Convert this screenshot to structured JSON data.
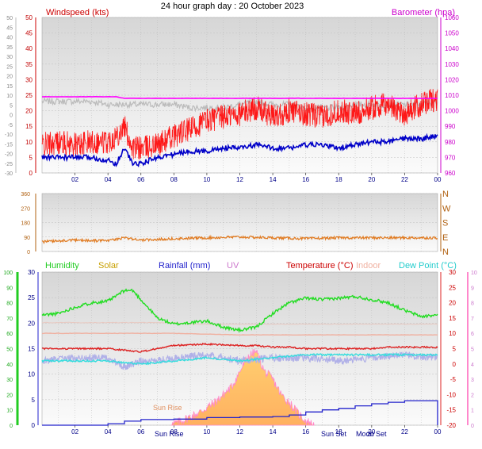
{
  "title": "24 hour graph day : 20 October 2023",
  "colors": {
    "wind": "#ff0000",
    "gust": "#ff0000",
    "avg_wind": "#0000c8",
    "wind_axis": "#c00000",
    "baro": "#ff00ff",
    "baro_axis": "#cc00cc",
    "dir": "#e07a20",
    "dir_axis": "#b06010",
    "humidity": "#22dd22",
    "solar": "#c8a000",
    "rain": "#2222cc",
    "uv": "#cc77cc",
    "temp": "#dd2222",
    "indoor": "#f0b0a0",
    "dewpoint": "#33dddd",
    "feels": "#b0b0e8",
    "grey_series": "#bbbbbb",
    "panel_top": "#d8d8d8",
    "panel_bottom": "#fafafa",
    "grid": "#b8b8b8",
    "axis_text": "#555555",
    "sun_fill": "#ffc060",
    "sun_edge": "#ff88cc"
  },
  "chart_data": [
    {
      "type": "line",
      "panel": "wind_baro",
      "title": "",
      "left_label": "Windspeed (kts)",
      "right_label": "Barometer (hpa)",
      "left_ticks": [
        "50",
        "45",
        "40",
        "35",
        "30",
        "25",
        "20",
        "15",
        "10",
        "5",
        "0",
        "-5",
        "-10",
        "-15",
        "-20",
        "-25",
        "-30"
      ],
      "left_ticks_wind": [
        "50",
        "45",
        "40",
        "35",
        "30",
        "25",
        "20",
        "15",
        "10",
        "5",
        "0"
      ],
      "right_ticks": [
        "1060",
        "1050",
        "1040",
        "1030",
        "1020",
        "1010",
        "1000",
        "990",
        "980",
        "970",
        "960"
      ],
      "x_ticks": [
        "02",
        "04",
        "06",
        "08",
        "10",
        "12",
        "14",
        "16",
        "18",
        "20",
        "22",
        "00"
      ],
      "ylim_wind": [
        0,
        50
      ],
      "ylim_baro": [
        960,
        1060
      ],
      "hours": [
        0,
        1,
        2,
        3,
        4,
        4.5,
        5,
        5.5,
        6,
        7,
        8,
        9,
        10,
        11,
        12,
        13,
        14,
        15,
        16,
        17,
        18,
        19,
        20,
        21,
        22,
        23,
        24
      ],
      "series": [
        {
          "key": "gust",
          "values": [
            9,
            10,
            9,
            10,
            10,
            12,
            15,
            8,
            8,
            9,
            12,
            14,
            17,
            18,
            19,
            21,
            18,
            20,
            19,
            18,
            20,
            19,
            21,
            22,
            19,
            22,
            24
          ],
          "noise": 4
        },
        {
          "key": "avg_wind",
          "values": [
            5,
            5,
            5,
            5,
            4,
            3,
            8,
            3,
            3,
            5,
            6,
            7,
            7,
            8,
            8,
            9,
            8,
            8,
            9,
            9,
            8,
            9,
            10,
            10,
            11,
            11,
            12
          ],
          "noise": 0.8
        },
        {
          "key": "grey_series",
          "values": [
            23,
            23,
            23,
            23,
            22,
            22,
            22,
            22,
            22,
            22,
            22,
            21,
            21,
            21,
            22,
            23,
            22,
            22,
            21,
            21,
            21,
            22,
            22,
            22,
            22,
            22,
            23
          ],
          "noise": 1
        }
      ],
      "baro_values": [
        1009,
        1009,
        1009,
        1009,
        1009,
        1009,
        1008,
        1008,
        1008,
        1008,
        1008,
        1008,
        1008,
        1008,
        1008,
        1008,
        1008,
        1008,
        1008,
        1008,
        1008,
        1008,
        1008,
        1008,
        1008,
        1008,
        1008
      ]
    },
    {
      "type": "line",
      "panel": "direction",
      "left_ticks": [
        "360",
        "270",
        "180",
        "90",
        "0"
      ],
      "right_labels": [
        "N",
        "W",
        "S",
        "E",
        "N"
      ],
      "ylim": [
        0,
        360
      ],
      "x_ticks": [
        "02",
        "04",
        "06",
        "08",
        "10",
        "12",
        "14",
        "16",
        "18",
        "20",
        "22",
        "00"
      ],
      "hours": [
        0,
        2,
        4,
        5,
        6,
        8,
        10,
        12,
        14,
        16,
        18,
        20,
        22,
        24
      ],
      "values": [
        60,
        70,
        65,
        85,
        70,
        80,
        85,
        90,
        85,
        80,
        85,
        85,
        85,
        85
      ],
      "noise": 8
    },
    {
      "type": "line",
      "panel": "temp_hum",
      "legend": {
        "humidity": "Humidity",
        "solar": "Solar",
        "rain": "Rainfall (mm)",
        "uv": "UV",
        "temp": "Temperature (°C)",
        "indoor": "Indoor",
        "dewpoint": "Dew Point (°C)"
      },
      "humidity_ticks": [
        "100",
        "90",
        "80",
        "70",
        "60",
        "50",
        "40",
        "30",
        "20",
        "10",
        "0"
      ],
      "rain_ticks": [
        "30",
        "25",
        "20",
        "15",
        "10",
        "5",
        "0"
      ],
      "uv_ticks": [
        "10",
        "9",
        "8",
        "7",
        "6",
        "5",
        "4",
        "3",
        "2",
        "1",
        "0"
      ],
      "temp_ticks": [
        "30",
        "25",
        "20",
        "15",
        "10",
        "5",
        "0",
        "-5",
        "-10",
        "-15",
        "-20"
      ],
      "x_ticks": [
        "02",
        "04",
        "06",
        "08",
        "10",
        "12",
        "14",
        "16",
        "18",
        "20",
        "22",
        "00"
      ],
      "annotations": [
        "Sun Rise",
        "Sun Rise",
        "Sun Set",
        "Moon Set",
        "20"
      ],
      "ylim_humidity": [
        0,
        100
      ],
      "ylim_rain": [
        0,
        30
      ],
      "ylim_temp": [
        -20,
        30
      ],
      "humidity": {
        "hours": [
          0,
          1,
          2,
          3,
          4,
          5,
          5.5,
          6,
          7,
          8,
          9,
          10,
          11,
          12,
          13,
          14,
          15,
          16,
          17,
          18,
          19,
          20,
          21,
          22,
          23,
          24
        ],
        "values": [
          72,
          73,
          77,
          80,
          81,
          88,
          88,
          82,
          70,
          66,
          67,
          68,
          64,
          62,
          64,
          73,
          80,
          83,
          82,
          83,
          84,
          82,
          80,
          75,
          71,
          72
        ]
      },
      "humidity_noise": 1,
      "grey_series": {
        "hours": [
          0,
          1,
          2,
          3,
          4,
          5,
          6,
          7,
          8,
          9,
          10,
          11,
          12,
          13,
          14,
          15,
          16,
          17,
          18,
          19,
          20,
          21,
          22,
          23,
          24
        ],
        "values": [
          67,
          67,
          67,
          67,
          67,
          67,
          67,
          67,
          67,
          66,
          66,
          66,
          66,
          66,
          66,
          66,
          66,
          66,
          66,
          66,
          66,
          66,
          66,
          66,
          66
        ]
      },
      "indoor": {
        "hours": [
          0,
          4,
          8,
          12,
          16,
          20,
          24
        ],
        "values": [
          10,
          10,
          10,
          9.5,
          9.5,
          9.5,
          9.5
        ]
      },
      "temp": {
        "hours": [
          0,
          2,
          4,
          6,
          8,
          10,
          12,
          13,
          14,
          15,
          16,
          17,
          18,
          19,
          20,
          21,
          22,
          23,
          24
        ],
        "values": [
          5,
          5,
          5,
          4,
          6,
          6.5,
          6,
          6,
          5.5,
          5.5,
          5,
          5,
          5,
          5,
          5,
          5.5,
          5.5,
          5.5,
          5.5
        ]
      },
      "dewpoint": {
        "hours": [
          0,
          2,
          4,
          6,
          8,
          10,
          12,
          14,
          16,
          18,
          20,
          22,
          24
        ],
        "values": [
          1,
          1,
          1,
          0,
          1,
          2,
          1,
          2,
          3,
          3,
          3,
          3,
          3
        ]
      },
      "feels": {
        "hours": [
          0,
          2,
          4,
          5,
          6,
          7,
          8,
          10,
          12,
          14,
          16,
          18,
          20,
          22,
          24
        ],
        "values": [
          1,
          2,
          2,
          -1,
          1,
          1,
          2,
          3,
          1,
          2,
          2,
          1,
          2,
          3,
          2
        ]
      },
      "feels_noise": 1.2,
      "rain": {
        "hours": [
          0,
          3,
          4,
          5,
          6,
          8,
          9,
          10,
          12,
          14,
          15,
          16,
          17,
          18,
          19,
          20,
          21,
          22,
          23,
          23.9,
          24
        ],
        "values": [
          0,
          0,
          0.3,
          0.8,
          1.1,
          1.2,
          1.2,
          1.5,
          1.6,
          1.7,
          2.0,
          2.6,
          3.0,
          3.3,
          3.8,
          4.2,
          4.5,
          4.8,
          4.8,
          4.8,
          0
        ]
      },
      "solar": {
        "hours": [
          7.8,
          8.5,
          9.5,
          10.5,
          11.5,
          12,
          12.5,
          13,
          13.5,
          14,
          14.5,
          15,
          15.5,
          16,
          16.5
        ],
        "values": [
          0,
          0.3,
          0.8,
          1.5,
          2.5,
          3.5,
          4.5,
          4.8,
          3.5,
          3,
          2,
          1.5,
          0.8,
          0.3,
          0
        ]
      }
    }
  ]
}
